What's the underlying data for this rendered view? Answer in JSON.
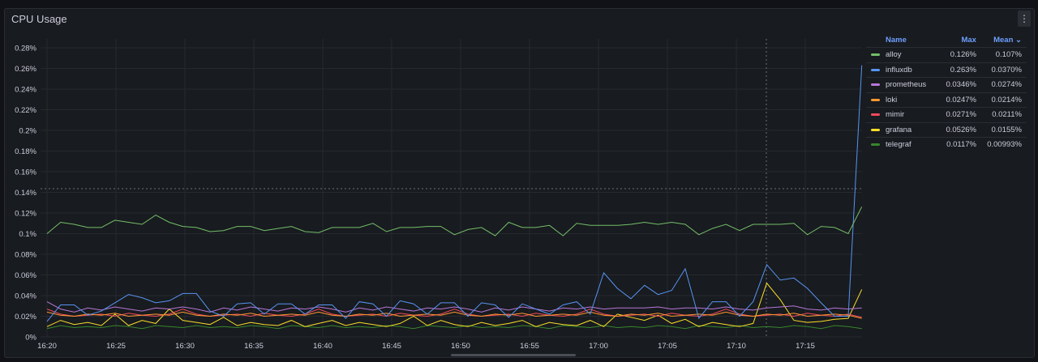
{
  "panel": {
    "title": "CPU Usage",
    "menu_icon": "kebab-menu-icon"
  },
  "legend": {
    "headers": {
      "name": "Name",
      "max": "Max",
      "mean": "Mean"
    },
    "sort_icon": "chevron-down-icon"
  },
  "chart_data": {
    "type": "line",
    "title": "CPU Usage",
    "xlabel": "",
    "ylabel": "",
    "x_range": [
      "16:20",
      "17:19"
    ],
    "x_ticks": [
      "16:20",
      "16:25",
      "16:30",
      "16:35",
      "16:40",
      "16:45",
      "16:50",
      "16:55",
      "17:00",
      "17:05",
      "17:10",
      "17:15"
    ],
    "y_ticks": [
      "0%",
      "0.02%",
      "0.04%",
      "0.06%",
      "0.08%",
      "0.1%",
      "0.12%",
      "0.14%",
      "0.16%",
      "0.18%",
      "0.2%",
      "0.22%",
      "0.24%",
      "0.26%",
      "0.28%"
    ],
    "ylim": [
      0,
      0.28
    ],
    "grid": true,
    "legend_position": "right",
    "series": [
      {
        "name": "alloy",
        "color": "#73bf69",
        "max": "0.126%",
        "mean": "0.107%",
        "values": [
          0.1,
          0.111,
          0.109,
          0.106,
          0.106,
          0.113,
          0.111,
          0.109,
          0.118,
          0.111,
          0.107,
          0.106,
          0.102,
          0.103,
          0.107,
          0.107,
          0.103,
          0.105,
          0.107,
          0.102,
          0.101,
          0.106,
          0.106,
          0.106,
          0.11,
          0.102,
          0.106,
          0.106,
          0.107,
          0.107,
          0.099,
          0.104,
          0.106,
          0.098,
          0.111,
          0.106,
          0.106,
          0.108,
          0.098,
          0.11,
          0.108,
          0.108,
          0.108,
          0.109,
          0.111,
          0.109,
          0.111,
          0.109,
          0.099,
          0.105,
          0.109,
          0.103,
          0.109,
          0.109,
          0.109,
          0.11,
          0.099,
          0.107,
          0.106,
          0.1,
          0.126
        ]
      },
      {
        "name": "influxdb",
        "color": "#5794f2",
        "max": "0.263%",
        "mean": "0.0370%",
        "values": [
          0.015,
          0.031,
          0.031,
          0.021,
          0.025,
          0.033,
          0.041,
          0.038,
          0.033,
          0.035,
          0.042,
          0.042,
          0.025,
          0.02,
          0.032,
          0.033,
          0.022,
          0.032,
          0.032,
          0.022,
          0.031,
          0.031,
          0.018,
          0.034,
          0.032,
          0.02,
          0.035,
          0.032,
          0.022,
          0.033,
          0.033,
          0.02,
          0.033,
          0.031,
          0.019,
          0.032,
          0.027,
          0.022,
          0.031,
          0.034,
          0.022,
          0.062,
          0.047,
          0.037,
          0.05,
          0.041,
          0.045,
          0.066,
          0.018,
          0.034,
          0.034,
          0.02,
          0.034,
          0.07,
          0.055,
          0.057,
          0.047,
          0.033,
          0.02,
          0.02,
          0.263
        ]
      },
      {
        "name": "prometheus",
        "color": "#b877d9",
        "max": "0.0346%",
        "mean": "0.0274%",
        "values": [
          0.034,
          0.027,
          0.024,
          0.028,
          0.026,
          0.029,
          0.027,
          0.025,
          0.028,
          0.027,
          0.029,
          0.027,
          0.024,
          0.028,
          0.026,
          0.029,
          0.027,
          0.025,
          0.028,
          0.027,
          0.029,
          0.027,
          0.024,
          0.028,
          0.026,
          0.029,
          0.027,
          0.025,
          0.028,
          0.027,
          0.029,
          0.027,
          0.024,
          0.028,
          0.026,
          0.029,
          0.027,
          0.025,
          0.028,
          0.027,
          0.029,
          0.027,
          0.028,
          0.028,
          0.028,
          0.029,
          0.027,
          0.028,
          0.028,
          0.027,
          0.029,
          0.027,
          0.026,
          0.028,
          0.029,
          0.03,
          0.027,
          0.026,
          0.028,
          0.027,
          0.028
        ]
      },
      {
        "name": "loki",
        "color": "#ff9830",
        "max": "0.0247%",
        "mean": "0.0214%",
        "values": [
          0.024,
          0.021,
          0.02,
          0.022,
          0.021,
          0.023,
          0.02,
          0.021,
          0.022,
          0.021,
          0.024,
          0.021,
          0.02,
          0.022,
          0.021,
          0.023,
          0.02,
          0.021,
          0.022,
          0.021,
          0.024,
          0.021,
          0.02,
          0.022,
          0.021,
          0.023,
          0.02,
          0.021,
          0.022,
          0.021,
          0.024,
          0.021,
          0.02,
          0.022,
          0.021,
          0.023,
          0.02,
          0.021,
          0.022,
          0.021,
          0.024,
          0.021,
          0.02,
          0.022,
          0.021,
          0.023,
          0.02,
          0.021,
          0.022,
          0.021,
          0.024,
          0.021,
          0.02,
          0.022,
          0.021,
          0.023,
          0.02,
          0.021,
          0.022,
          0.021,
          0.018
        ]
      },
      {
        "name": "mimir",
        "color": "#f2495c",
        "max": "0.0271%",
        "mean": "0.0211%",
        "values": [
          0.027,
          0.022,
          0.02,
          0.021,
          0.022,
          0.02,
          0.023,
          0.021,
          0.02,
          0.022,
          0.027,
          0.022,
          0.02,
          0.021,
          0.022,
          0.02,
          0.023,
          0.021,
          0.02,
          0.022,
          0.027,
          0.022,
          0.02,
          0.021,
          0.022,
          0.02,
          0.023,
          0.021,
          0.02,
          0.022,
          0.027,
          0.022,
          0.02,
          0.021,
          0.022,
          0.02,
          0.023,
          0.021,
          0.02,
          0.022,
          0.027,
          0.022,
          0.02,
          0.021,
          0.022,
          0.02,
          0.023,
          0.021,
          0.02,
          0.022,
          0.027,
          0.022,
          0.02,
          0.021,
          0.022,
          0.02,
          0.023,
          0.021,
          0.02,
          0.022,
          0.019
        ]
      },
      {
        "name": "grafana",
        "color": "#fade2a",
        "max": "0.0526%",
        "mean": "0.0155%",
        "values": [
          0.01,
          0.016,
          0.012,
          0.014,
          0.011,
          0.022,
          0.011,
          0.016,
          0.013,
          0.027,
          0.016,
          0.014,
          0.012,
          0.019,
          0.011,
          0.014,
          0.012,
          0.011,
          0.016,
          0.01,
          0.013,
          0.016,
          0.011,
          0.014,
          0.012,
          0.01,
          0.013,
          0.02,
          0.011,
          0.016,
          0.012,
          0.01,
          0.014,
          0.011,
          0.013,
          0.016,
          0.01,
          0.014,
          0.012,
          0.011,
          0.016,
          0.01,
          0.022,
          0.019,
          0.016,
          0.021,
          0.013,
          0.017,
          0.01,
          0.014,
          0.012,
          0.01,
          0.013,
          0.052,
          0.036,
          0.016,
          0.014,
          0.015,
          0.017,
          0.018,
          0.046
        ]
      },
      {
        "name": "telegraf",
        "color": "#37872d",
        "max": "0.0117%",
        "mean": "0.00993%",
        "values": [
          0.008,
          0.011,
          0.009,
          0.01,
          0.009,
          0.011,
          0.01,
          0.008,
          0.011,
          0.01,
          0.009,
          0.011,
          0.009,
          0.01,
          0.009,
          0.011,
          0.01,
          0.008,
          0.011,
          0.01,
          0.009,
          0.011,
          0.009,
          0.01,
          0.009,
          0.011,
          0.01,
          0.008,
          0.011,
          0.01,
          0.009,
          0.011,
          0.009,
          0.01,
          0.009,
          0.011,
          0.01,
          0.008,
          0.011,
          0.01,
          0.009,
          0.011,
          0.009,
          0.01,
          0.009,
          0.011,
          0.01,
          0.008,
          0.011,
          0.01,
          0.009,
          0.011,
          0.009,
          0.01,
          0.009,
          0.011,
          0.01,
          0.008,
          0.011,
          0.01,
          0.008
        ]
      }
    ]
  }
}
